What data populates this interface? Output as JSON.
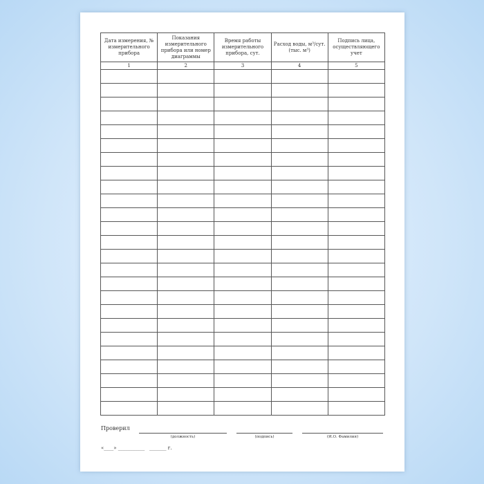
{
  "table": {
    "headers": [
      "Дата измерения, № измерительного прибора",
      "Показания измерительного прибора или номер диаграммы",
      "Время работы измерительного прибора, сут.",
      "Расход воды, м³/сут. (тыс. м³)",
      "Подпись лица, осуществляющего учет"
    ],
    "column_numbers": [
      "1",
      "2",
      "3",
      "4",
      "5"
    ],
    "empty_rows": 25
  },
  "footer": {
    "checked_label": "Проверил",
    "position_caption": "(должность)",
    "signature_caption": "(подпись)",
    "name_caption": "(И.О. Фамилия)",
    "date_line": "«____» ___________   _______ г."
  }
}
